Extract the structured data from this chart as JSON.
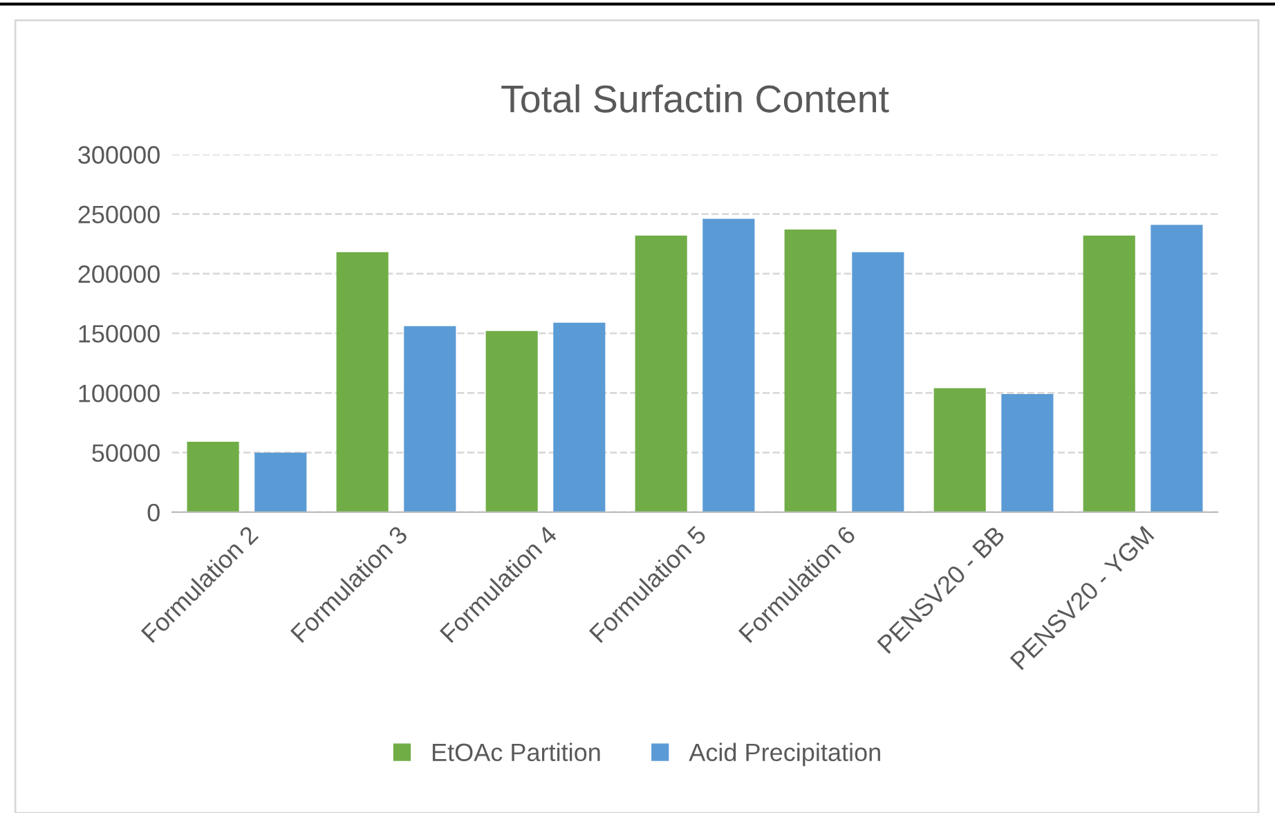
{
  "chart_data": {
    "type": "bar",
    "title": "Total Surfactin Content",
    "categories": [
      "Formulation 2",
      "Formulation 3",
      "Formulation 4",
      "Formulation 5",
      "Formulation 6",
      "PENSV20 - BB",
      "PENSV20 - YGM"
    ],
    "series": [
      {
        "name": "EtOAc Partition",
        "color": "#70ad47",
        "values": [
          59000,
          218000,
          152000,
          232000,
          237000,
          104000,
          232000
        ]
      },
      {
        "name": "Acid Precipitation",
        "color": "#5b9bd5",
        "values": [
          50000,
          156000,
          159000,
          246000,
          218000,
          99000,
          241000
        ]
      }
    ],
    "ylim": [
      0,
      300000
    ],
    "yticks": [
      0,
      50000,
      100000,
      150000,
      200000,
      250000,
      300000
    ],
    "grid": "y",
    "legend": "bottom"
  }
}
